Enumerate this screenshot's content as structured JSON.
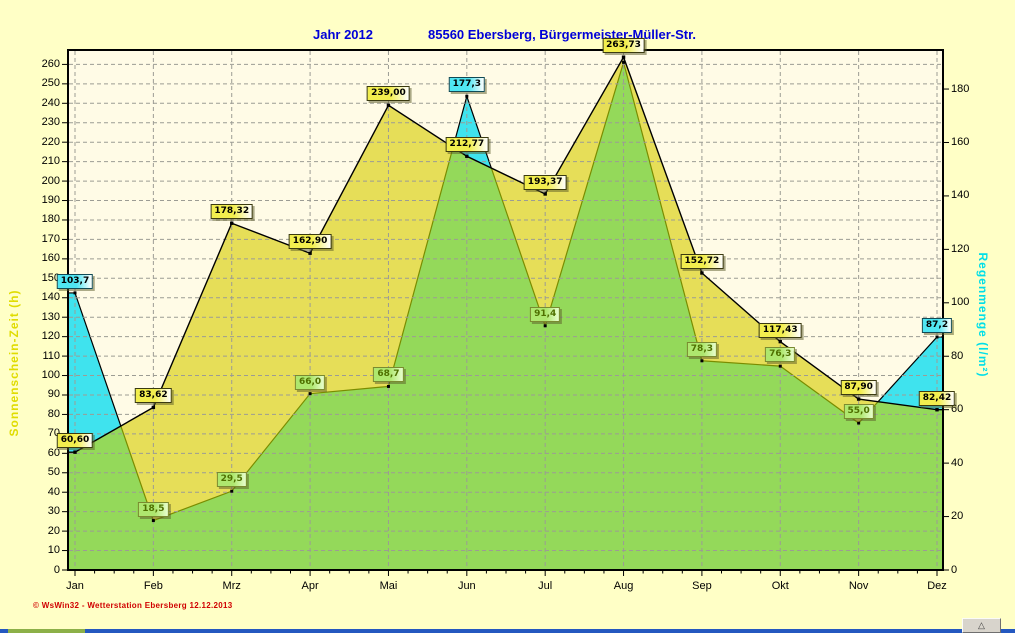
{
  "header": {
    "title_left": "Jahr  2012",
    "title_right": "85560 Ebersberg, Bürgermeister-Müller-Str."
  },
  "footer": {
    "credit": "© WsWin32 - Wetterstation Ebersberg  12.12.2013",
    "rollup_icon": "△"
  },
  "chart_data": {
    "type": "area",
    "categories": [
      "Jan",
      "Feb",
      "Mrz",
      "Apr",
      "Mai",
      "Jun",
      "Jul",
      "Aug",
      "Sep",
      "Okt",
      "Nov",
      "Dez"
    ],
    "series": [
      {
        "name": "Sonnenschein-Zeit (h)",
        "axis": "left",
        "fill_color": "#E6DE58",
        "line_color": "#000000",
        "values": [
          60.6,
          83.62,
          178.32,
          162.9,
          239.0,
          212.77,
          193.37,
          263.73,
          152.72,
          117.43,
          87.9,
          82.42
        ],
        "labels": [
          "60,60",
          "83,62",
          "178,32",
          "162,90",
          "239,00",
          "212,77",
          "193,37",
          "263,73",
          "152,72",
          "117,43",
          "87,90",
          "82,42"
        ]
      },
      {
        "name": "Regenmenge (l/m²)",
        "axis": "right",
        "fill_color_overlap": "#94D95A",
        "fill_color_excess": "#3FE3EE",
        "line_color": "#7A8C00",
        "values": [
          103.7,
          18.5,
          29.5,
          66.0,
          68.7,
          177.3,
          91.4,
          190,
          78.3,
          76.3,
          55.0,
          87.2
        ],
        "labels": [
          "103,7",
          "18,5",
          "29,5",
          "66,0",
          "68,7",
          "177,3",
          "91,4",
          null,
          "78,3",
          "76,3",
          "55,0",
          "87,2"
        ],
        "label_styles": [
          "cyan",
          "green",
          "green",
          "green",
          "green",
          "cyan",
          "green",
          null,
          "green",
          "green",
          "green",
          "cyan"
        ]
      }
    ],
    "left_axis": {
      "title": "Sonnenschein-Zeit  (h)",
      "min": 0,
      "tick_step": 10,
      "tick_max": 260
    },
    "right_axis": {
      "title": "Regenmenge  (l/m²)",
      "min": 0,
      "tick_step": 20,
      "tick_max": 180
    },
    "grid": true,
    "plot_bg": "#FFFBE6",
    "grid_color": "#9C9C94"
  }
}
